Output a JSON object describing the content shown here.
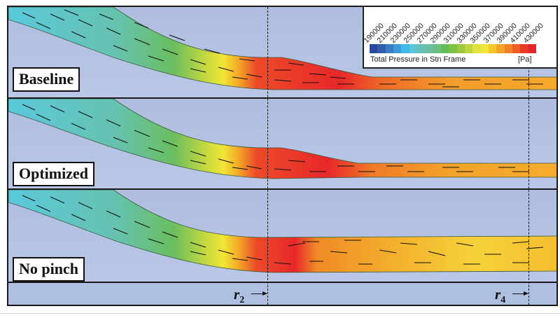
{
  "figure": {
    "panels": [
      {
        "id": "baseline",
        "label": "Baseline"
      },
      {
        "id": "optimized",
        "label": "Optimized"
      },
      {
        "id": "no-pinch",
        "label": "No pinch"
      }
    ],
    "radial_markers": [
      {
        "symbol": "r",
        "subscript": "2"
      },
      {
        "symbol": "r",
        "subscript": "4"
      }
    ]
  },
  "legend": {
    "title": "Total Pressure in Stn Frame",
    "unit": "[Pa]",
    "ticks": [
      "190000",
      "210000",
      "230000",
      "250000",
      "270000",
      "290000",
      "310000",
      "330000",
      "350000",
      "370000",
      "390000",
      "410000",
      "430000"
    ],
    "colors": [
      "#2a4b9b",
      "#3060ad",
      "#3a7cc4",
      "#3d9bdb",
      "#3fb9e6",
      "#5cc6d6",
      "#66c2b8",
      "#6cbf9d",
      "#6abf80",
      "#66bd55",
      "#7fc241",
      "#9cc93f",
      "#bdd43f",
      "#dde23f",
      "#f2e535",
      "#f6c72c",
      "#f5a227",
      "#f28226",
      "#ef5d27",
      "#e93a28",
      "#e4262a"
    ]
  },
  "colors": {
    "background": "#b3c2e2",
    "frame": "#1a1a1a",
    "low": "#5ac8dc",
    "mid": "#6cbf55",
    "high": "#e8272a"
  }
}
